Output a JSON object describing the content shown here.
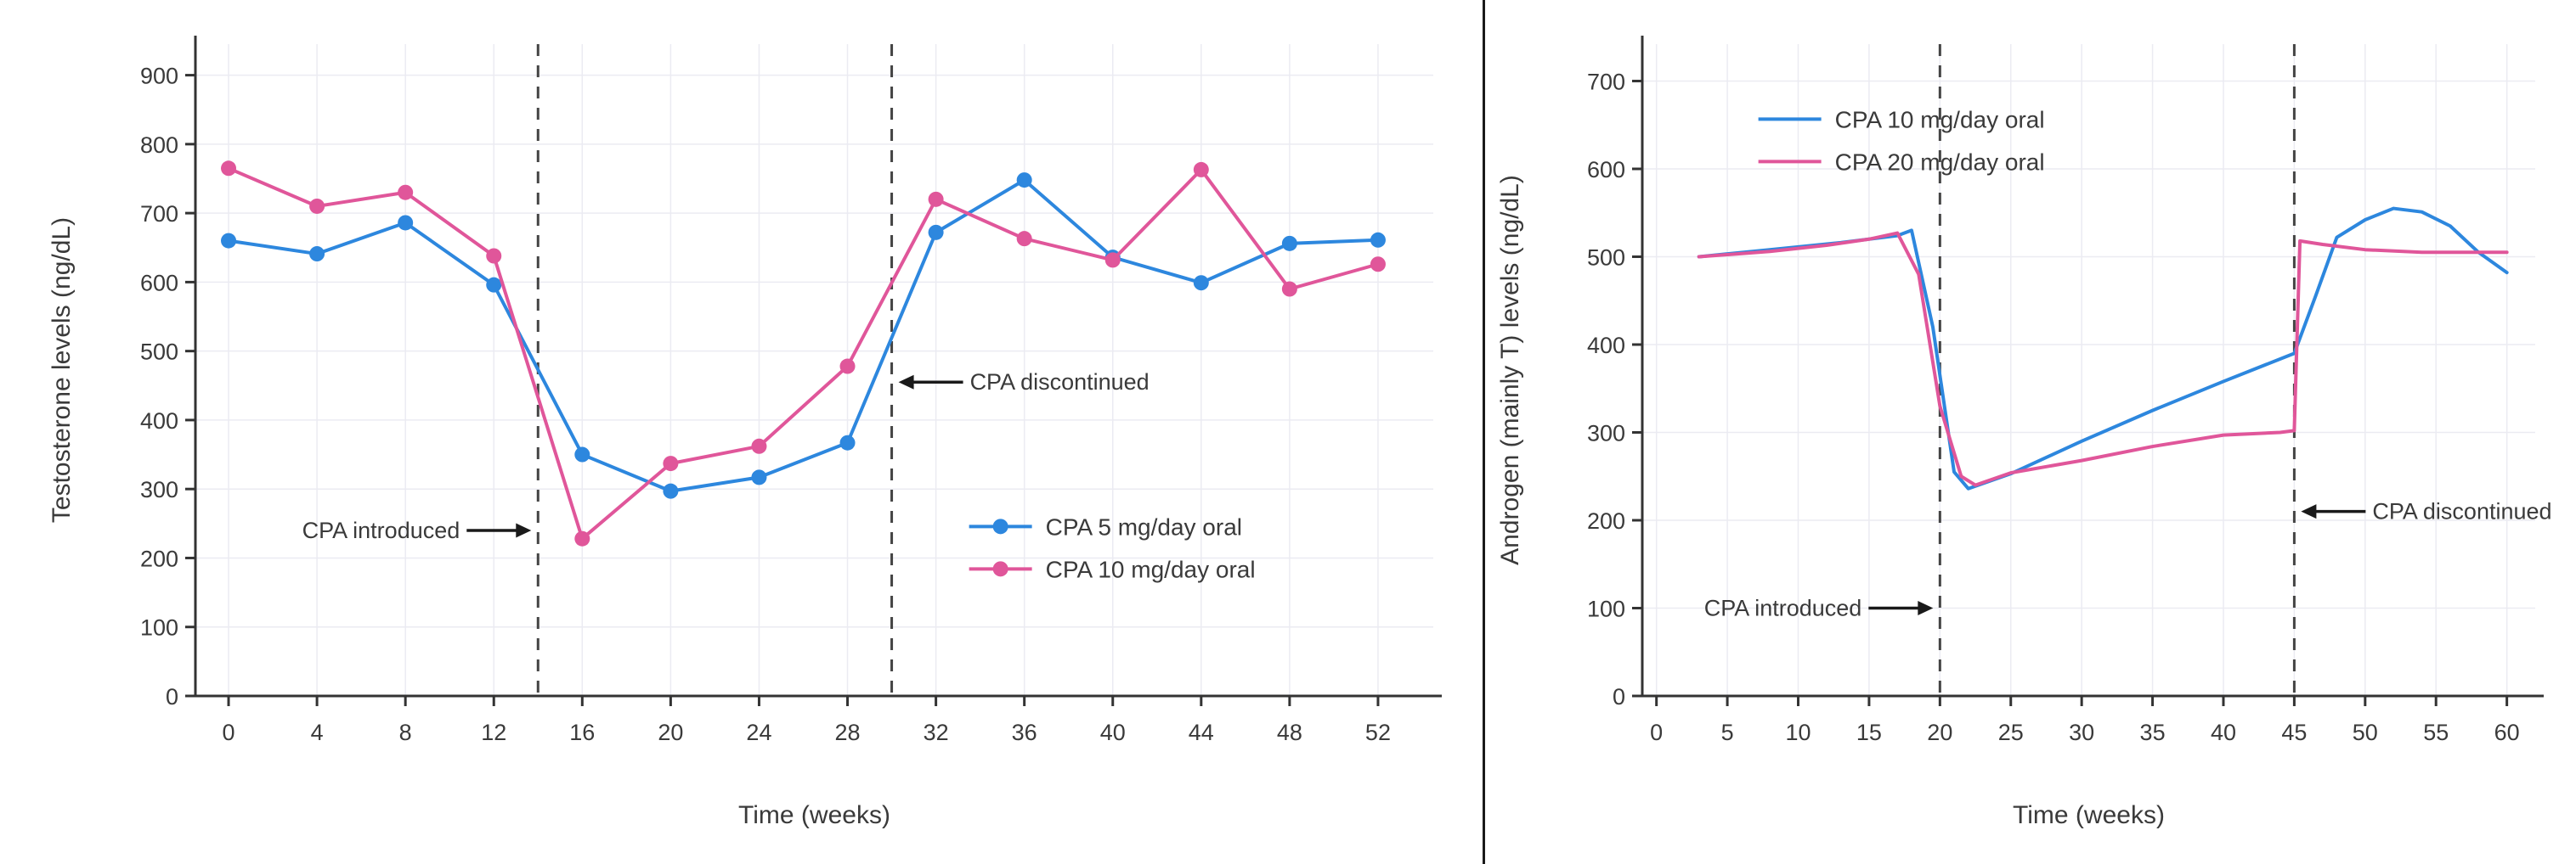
{
  "theme": {
    "background": "#ffffff",
    "divider": "#1a1a1a",
    "grid": "#ebebf2",
    "axis": "#333333",
    "text": "#3a3a3a",
    "vline": "#444444",
    "arrow": "#1a1a1a",
    "blue": "#2d87de",
    "pink": "#e0569a"
  },
  "chart_data": [
    {
      "type": "line",
      "title": "",
      "xlabel": "Time (weeks)",
      "ylabel": "Testosterone levels (ng/dL)",
      "xlim": [
        -1.5,
        54.5
      ],
      "ylim": [
        0,
        945
      ],
      "xticks": [
        0,
        4,
        8,
        12,
        16,
        20,
        24,
        28,
        32,
        36,
        40,
        44,
        48,
        52
      ],
      "yticks": [
        0,
        100,
        200,
        300,
        400,
        500,
        600,
        700,
        800,
        900
      ],
      "grid": true,
      "markers": true,
      "legend": {
        "fx": 0.625,
        "fy": 0.74
      },
      "series": [
        {
          "name": "CPA 5 mg/day oral",
          "color": "#2d87de",
          "points": [
            [
              0,
              660
            ],
            [
              4,
              641
            ],
            [
              8,
              686
            ],
            [
              12,
              596
            ],
            [
              16,
              350
            ],
            [
              20,
              297
            ],
            [
              24,
              317
            ],
            [
              28,
              367
            ],
            [
              32,
              672
            ],
            [
              36,
              748
            ],
            [
              40,
              636
            ],
            [
              44,
              599
            ],
            [
              48,
              656
            ],
            [
              52,
              661
            ]
          ]
        },
        {
          "name": "CPA 10 mg/day oral",
          "color": "#e0569a",
          "points": [
            [
              0,
              765
            ],
            [
              4,
              710
            ],
            [
              8,
              730
            ],
            [
              12,
              638
            ],
            [
              16,
              228
            ],
            [
              20,
              337
            ],
            [
              24,
              362
            ],
            [
              28,
              478
            ],
            [
              32,
              720
            ],
            [
              36,
              663
            ],
            [
              40,
              632
            ],
            [
              44,
              763
            ],
            [
              48,
              590
            ],
            [
              52,
              626
            ]
          ]
        }
      ],
      "vlines": [
        {
          "x": 14,
          "label": "CPA introduced",
          "label_side": "left",
          "label_y": 240
        },
        {
          "x": 30,
          "label": "CPA discontinued",
          "label_side": "right",
          "label_y": 455
        }
      ]
    },
    {
      "type": "line",
      "title": "",
      "xlabel": "Time (weeks)",
      "ylabel": "Androgen (mainly T) levels (ng/dL)",
      "xlim": [
        -1,
        62
      ],
      "ylim": [
        0,
        742
      ],
      "xticks": [
        0,
        5,
        10,
        15,
        20,
        25,
        30,
        35,
        40,
        45,
        50,
        55,
        60
      ],
      "yticks": [
        0,
        100,
        200,
        300,
        400,
        500,
        600,
        700
      ],
      "grid": true,
      "markers": false,
      "legend": {
        "fx": 0.13,
        "fy": 0.115
      },
      "series": [
        {
          "name": "CPA 10 mg/day oral",
          "color": "#2d87de",
          "points": [
            [
              3,
              500
            ],
            [
              8,
              508
            ],
            [
              13,
              516
            ],
            [
              17,
              524
            ],
            [
              18,
              530
            ],
            [
              19.5,
              420
            ],
            [
              21,
              255
            ],
            [
              22,
              236
            ],
            [
              25,
              253
            ],
            [
              30,
              290
            ],
            [
              35,
              325
            ],
            [
              40,
              358
            ],
            [
              45,
              390
            ],
            [
              46.5,
              455
            ],
            [
              48,
              522
            ],
            [
              50,
              542
            ],
            [
              52,
              555
            ],
            [
              54,
              551
            ],
            [
              56,
              535
            ],
            [
              58,
              505
            ],
            [
              60,
              482
            ]
          ]
        },
        {
          "name": "CPA 20 mg/day oral",
          "color": "#e0569a",
          "points": [
            [
              3,
              500
            ],
            [
              8,
              506
            ],
            [
              12,
              513
            ],
            [
              15,
              520
            ],
            [
              17,
              527
            ],
            [
              18.5,
              480
            ],
            [
              20,
              330
            ],
            [
              21.5,
              250
            ],
            [
              22.5,
              240
            ],
            [
              25,
              254
            ],
            [
              30,
              268
            ],
            [
              35,
              284
            ],
            [
              40,
              297
            ],
            [
              44,
              300
            ],
            [
              45,
              302
            ],
            [
              45.4,
              518
            ],
            [
              47,
              514
            ],
            [
              50,
              508
            ],
            [
              54,
              505
            ],
            [
              60,
              505
            ]
          ]
        }
      ],
      "vlines": [
        {
          "x": 20,
          "label": "CPA introduced",
          "label_side": "left",
          "label_y": 100
        },
        {
          "x": 45,
          "label": "CPA discontinued",
          "label_side": "right",
          "label_y": 210
        }
      ]
    }
  ]
}
